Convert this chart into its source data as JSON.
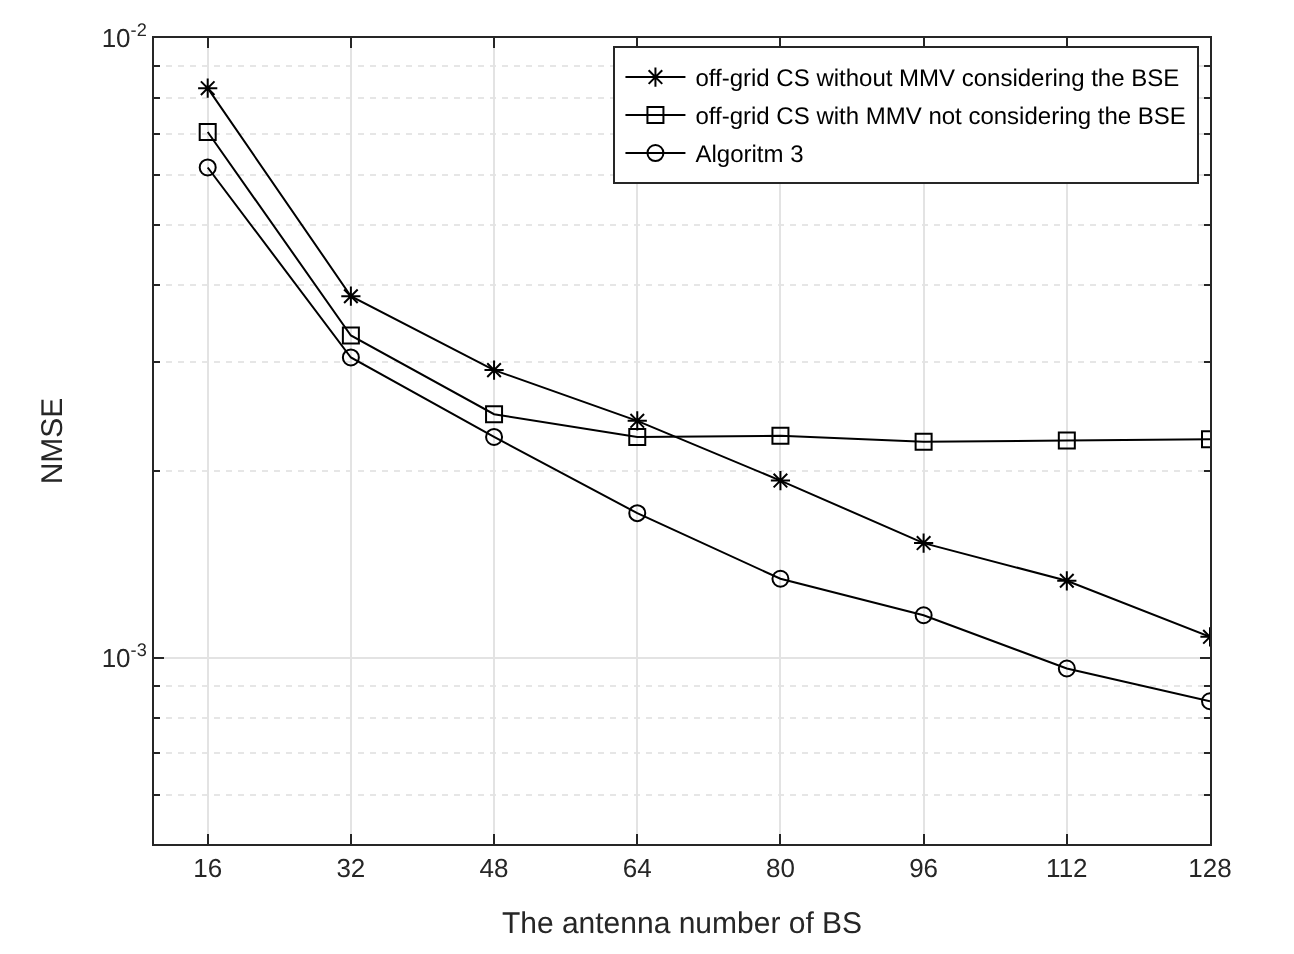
{
  "chart_data": {
    "type": "line",
    "xlabel": "The antenna number of BS",
    "ylabel": "NMSE",
    "log": "y",
    "grid": true,
    "legend": "top right",
    "line_style": "solid",
    "x": [
      16,
      32,
      48,
      64,
      80,
      96,
      112,
      128
    ],
    "xlim": [
      10,
      128
    ],
    "xticks": [
      16,
      32,
      48,
      64,
      80,
      96,
      112,
      128
    ],
    "ylim": [
      0.0005,
      0.01
    ],
    "yticks": [
      {
        "value": 0.001,
        "label": "10$^{-3}$"
      },
      {
        "value": 0.01,
        "label": "10$^{-2}$"
      }
    ],
    "series": [
      {
        "name": "off-grid CS without MMV considering the BSE",
        "color": "#000000",
        "marker": "cross",
        "values": [
          0.0083,
          0.00383,
          0.00291,
          0.00241,
          0.00193,
          0.00153,
          0.00133,
          0.00108
        ]
      },
      {
        "name": "off-grid CS with MMV not considering the BSE",
        "color": "#000000",
        "marker": "square",
        "values": [
          0.00705,
          0.00331,
          0.00247,
          0.00227,
          0.00228,
          0.00223,
          0.00224,
          0.00225
        ]
      },
      {
        "name": "Algoritm 3",
        "color": "#000000",
        "marker": "circle",
        "values": [
          0.00618,
          0.00305,
          0.00227,
          0.00171,
          0.00134,
          0.00117,
          0.00096,
          0.00085
        ]
      }
    ]
  }
}
